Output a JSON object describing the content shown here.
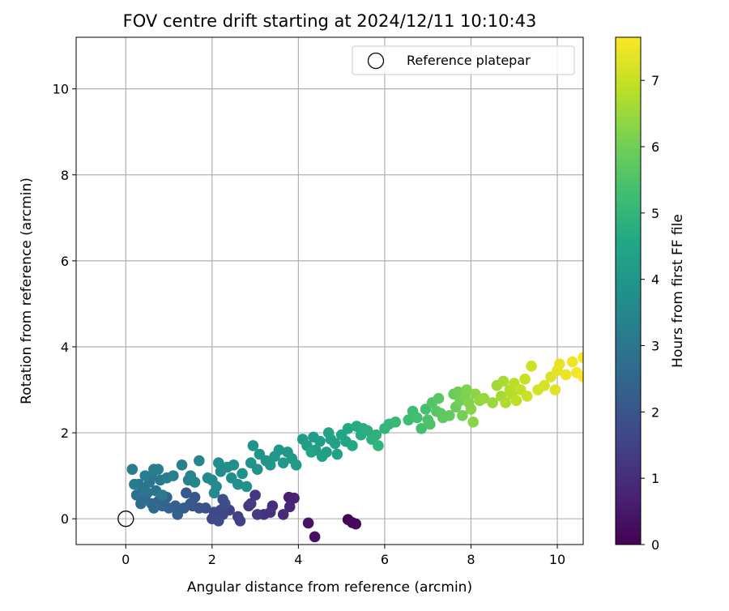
{
  "chart_data": {
    "type": "scatter",
    "title": "FOV centre drift starting at 2024/12/11 10:10:43",
    "xlabel": "Angular distance from reference (arcmin)",
    "ylabel": "Rotation from reference (arcmin)",
    "xlim": [
      -1.15,
      10.6
    ],
    "ylim": [
      -0.6,
      11.2
    ],
    "xticks": [
      0,
      2,
      4,
      6,
      8,
      10
    ],
    "yticks": [
      0,
      2,
      4,
      6,
      8,
      10
    ],
    "grid": true,
    "legend": {
      "placement": "top-right",
      "entries": [
        "Reference platepar"
      ]
    },
    "reference_point": {
      "name": "Reference platepar",
      "x": 0.0,
      "y": 0.0
    },
    "colorbar": {
      "label": "Hours from first FF file",
      "range": [
        0,
        7.65
      ],
      "ticks": [
        0,
        1,
        2,
        3,
        4,
        5,
        6,
        7
      ],
      "colormap": "viridis"
    },
    "series": [
      {
        "points": [
          {
            "x": 5.15,
            "y": -0.02,
            "c": 0.05
          },
          {
            "x": 5.25,
            "y": -0.09,
            "c": 0.1
          },
          {
            "x": 5.33,
            "y": -0.12,
            "c": 0.15
          },
          {
            "x": 4.38,
            "y": -0.42,
            "c": 0.3
          },
          {
            "x": 4.23,
            "y": -0.1,
            "c": 0.4
          },
          {
            "x": 3.78,
            "y": 0.5,
            "c": 0.7
          },
          {
            "x": 3.9,
            "y": 0.48,
            "c": 0.75
          },
          {
            "x": 3.8,
            "y": 0.28,
            "c": 0.8
          },
          {
            "x": 3.65,
            "y": 0.1,
            "c": 0.9
          },
          {
            "x": 3.4,
            "y": 0.3,
            "c": 1.0
          },
          {
            "x": 3.35,
            "y": 0.15,
            "c": 1.1
          },
          {
            "x": 3.2,
            "y": 0.1,
            "c": 1.15
          },
          {
            "x": 3.0,
            "y": 0.55,
            "c": 1.2
          },
          {
            "x": 2.85,
            "y": 0.3,
            "c": 1.25
          },
          {
            "x": 3.05,
            "y": 0.1,
            "c": 1.3
          },
          {
            "x": 2.9,
            "y": 0.35,
            "c": 1.35
          },
          {
            "x": 2.6,
            "y": 0.05,
            "c": 1.4
          },
          {
            "x": 2.65,
            "y": -0.05,
            "c": 1.45
          },
          {
            "x": 2.4,
            "y": 0.2,
            "c": 1.5
          },
          {
            "x": 2.25,
            "y": 0.1,
            "c": 1.55
          },
          {
            "x": 2.2,
            "y": 0.2,
            "c": 1.6
          },
          {
            "x": 2.05,
            "y": 0.15,
            "c": 1.65
          },
          {
            "x": 2.0,
            "y": 0.0,
            "c": 1.7
          },
          {
            "x": 2.15,
            "y": -0.05,
            "c": 1.75
          },
          {
            "x": 2.3,
            "y": 0.35,
            "c": 1.8
          },
          {
            "x": 2.25,
            "y": 0.45,
            "c": 1.85
          },
          {
            "x": 1.85,
            "y": 0.25,
            "c": 1.9
          },
          {
            "x": 1.7,
            "y": 0.25,
            "c": 1.95
          },
          {
            "x": 1.55,
            "y": 0.3,
            "c": 2.0
          },
          {
            "x": 1.6,
            "y": 0.5,
            "c": 2.05
          },
          {
            "x": 1.4,
            "y": 0.6,
            "c": 2.1
          },
          {
            "x": 1.5,
            "y": 0.35,
            "c": 2.15
          },
          {
            "x": 1.35,
            "y": 0.25,
            "c": 2.2
          },
          {
            "x": 1.15,
            "y": 0.3,
            "c": 2.25
          },
          {
            "x": 1.2,
            "y": 0.1,
            "c": 2.3
          },
          {
            "x": 1.0,
            "y": 0.25,
            "c": 2.35
          },
          {
            "x": 0.95,
            "y": 0.5,
            "c": 2.4
          },
          {
            "x": 0.85,
            "y": 0.3,
            "c": 2.45
          },
          {
            "x": 0.75,
            "y": 0.4,
            "c": 2.5
          },
          {
            "x": 0.6,
            "y": 0.35,
            "c": 2.55
          },
          {
            "x": 0.65,
            "y": 0.25,
            "c": 2.6
          },
          {
            "x": 0.45,
            "y": 0.45,
            "c": 2.65
          },
          {
            "x": 0.35,
            "y": 0.35,
            "c": 2.7
          },
          {
            "x": 0.25,
            "y": 0.55,
            "c": 2.75
          },
          {
            "x": 0.3,
            "y": 0.8,
            "c": 2.8
          },
          {
            "x": 0.5,
            "y": 0.6,
            "c": 2.85
          },
          {
            "x": 0.55,
            "y": 0.85,
            "c": 2.9
          },
          {
            "x": 0.7,
            "y": 0.65,
            "c": 2.95
          },
          {
            "x": 0.4,
            "y": 0.7,
            "c": 3.0
          },
          {
            "x": 0.6,
            "y": 1.0,
            "c": 3.05
          },
          {
            "x": 0.8,
            "y": 0.9,
            "c": 3.1
          },
          {
            "x": 0.85,
            "y": 0.55,
            "c": 3.12
          },
          {
            "x": 0.2,
            "y": 0.8,
            "c": 3.15
          },
          {
            "x": 0.15,
            "y": 1.15,
            "c": 3.18
          },
          {
            "x": 0.45,
            "y": 1.0,
            "c": 3.2
          },
          {
            "x": 0.65,
            "y": 1.15,
            "c": 3.22
          },
          {
            "x": 0.75,
            "y": 1.15,
            "c": 3.25
          },
          {
            "x": 0.95,
            "y": 0.95,
            "c": 3.28
          },
          {
            "x": 1.1,
            "y": 1.0,
            "c": 3.3
          },
          {
            "x": 1.3,
            "y": 1.25,
            "c": 3.35
          },
          {
            "x": 1.45,
            "y": 0.9,
            "c": 3.4
          },
          {
            "x": 1.5,
            "y": 1.0,
            "c": 3.42
          },
          {
            "x": 1.6,
            "y": 0.85,
            "c": 3.45
          },
          {
            "x": 1.7,
            "y": 1.35,
            "c": 3.5
          },
          {
            "x": 1.9,
            "y": 0.95,
            "c": 3.55
          },
          {
            "x": 2.0,
            "y": 0.9,
            "c": 3.58
          },
          {
            "x": 2.1,
            "y": 0.75,
            "c": 3.6
          },
          {
            "x": 2.05,
            "y": 0.6,
            "c": 3.62
          },
          {
            "x": 2.2,
            "y": 1.1,
            "c": 3.65
          },
          {
            "x": 2.15,
            "y": 1.3,
            "c": 3.68
          },
          {
            "x": 2.35,
            "y": 1.2,
            "c": 3.7
          },
          {
            "x": 2.45,
            "y": 0.95,
            "c": 3.72
          },
          {
            "x": 2.5,
            "y": 1.25,
            "c": 3.75
          },
          {
            "x": 2.6,
            "y": 0.8,
            "c": 3.78
          },
          {
            "x": 2.7,
            "y": 1.05,
            "c": 3.8
          },
          {
            "x": 2.8,
            "y": 0.75,
            "c": 3.82
          },
          {
            "x": 2.9,
            "y": 1.3,
            "c": 3.85
          },
          {
            "x": 2.95,
            "y": 1.7,
            "c": 3.88
          },
          {
            "x": 3.05,
            "y": 1.15,
            "c": 3.9
          },
          {
            "x": 3.1,
            "y": 1.5,
            "c": 3.93
          },
          {
            "x": 3.25,
            "y": 1.35,
            "c": 3.95
          },
          {
            "x": 3.35,
            "y": 1.25,
            "c": 3.98
          },
          {
            "x": 3.45,
            "y": 1.45,
            "c": 4.0
          },
          {
            "x": 3.55,
            "y": 1.6,
            "c": 4.03
          },
          {
            "x": 3.65,
            "y": 1.3,
            "c": 4.05
          },
          {
            "x": 3.75,
            "y": 1.55,
            "c": 4.08
          },
          {
            "x": 3.85,
            "y": 1.4,
            "c": 4.1
          },
          {
            "x": 3.95,
            "y": 1.25,
            "c": 4.12
          },
          {
            "x": 4.1,
            "y": 1.85,
            "c": 4.15
          },
          {
            "x": 4.2,
            "y": 1.7,
            "c": 4.18
          },
          {
            "x": 4.35,
            "y": 1.9,
            "c": 4.2
          },
          {
            "x": 4.4,
            "y": 1.6,
            "c": 4.22
          },
          {
            "x": 4.5,
            "y": 1.8,
            "c": 4.25
          },
          {
            "x": 4.55,
            "y": 1.45,
            "c": 4.28
          },
          {
            "x": 4.65,
            "y": 1.55,
            "c": 4.3
          },
          {
            "x": 4.75,
            "y": 1.85,
            "c": 4.33
          },
          {
            "x": 4.85,
            "y": 1.75,
            "c": 4.35
          },
          {
            "x": 4.9,
            "y": 1.5,
            "c": 4.38
          },
          {
            "x": 4.7,
            "y": 2.0,
            "c": 4.4
          },
          {
            "x": 4.3,
            "y": 1.55,
            "c": 4.42
          },
          {
            "x": 5.0,
            "y": 1.95,
            "c": 4.45
          },
          {
            "x": 5.1,
            "y": 1.8,
            "c": 4.5
          },
          {
            "x": 5.15,
            "y": 2.1,
            "c": 4.55
          },
          {
            "x": 5.25,
            "y": 1.7,
            "c": 4.6
          },
          {
            "x": 5.35,
            "y": 2.15,
            "c": 4.65
          },
          {
            "x": 5.45,
            "y": 1.95,
            "c": 4.7
          },
          {
            "x": 5.5,
            "y": 2.1,
            "c": 4.75
          },
          {
            "x": 5.6,
            "y": 2.05,
            "c": 4.8
          },
          {
            "x": 5.7,
            "y": 1.85,
            "c": 4.85
          },
          {
            "x": 5.8,
            "y": 1.95,
            "c": 4.9
          },
          {
            "x": 5.85,
            "y": 1.7,
            "c": 4.95
          },
          {
            "x": 6.0,
            "y": 2.1,
            "c": 5.0
          },
          {
            "x": 6.1,
            "y": 2.2,
            "c": 5.05
          },
          {
            "x": 6.25,
            "y": 2.25,
            "c": 5.1
          },
          {
            "x": 6.55,
            "y": 2.3,
            "c": 5.2
          },
          {
            "x": 6.65,
            "y": 2.5,
            "c": 5.25
          },
          {
            "x": 6.75,
            "y": 2.35,
            "c": 5.3
          },
          {
            "x": 6.85,
            "y": 2.1,
            "c": 5.35
          },
          {
            "x": 6.95,
            "y": 2.55,
            "c": 5.4
          },
          {
            "x": 7.0,
            "y": 2.3,
            "c": 5.45
          },
          {
            "x": 7.05,
            "y": 2.2,
            "c": 5.5
          },
          {
            "x": 7.1,
            "y": 2.7,
            "c": 5.55
          },
          {
            "x": 7.2,
            "y": 2.5,
            "c": 5.6
          },
          {
            "x": 7.25,
            "y": 2.8,
            "c": 5.65
          },
          {
            "x": 7.3,
            "y": 2.45,
            "c": 5.7
          },
          {
            "x": 7.35,
            "y": 2.35,
            "c": 5.75
          },
          {
            "x": 7.5,
            "y": 2.4,
            "c": 5.8
          },
          {
            "x": 7.6,
            "y": 2.9,
            "c": 5.85
          },
          {
            "x": 7.65,
            "y": 2.6,
            "c": 5.9
          },
          {
            "x": 7.7,
            "y": 2.95,
            "c": 5.95
          },
          {
            "x": 7.75,
            "y": 2.75,
            "c": 6.0
          },
          {
            "x": 7.8,
            "y": 2.4,
            "c": 6.05
          },
          {
            "x": 7.85,
            "y": 2.85,
            "c": 6.1
          },
          {
            "x": 7.9,
            "y": 3.0,
            "c": 6.15
          },
          {
            "x": 7.95,
            "y": 2.7,
            "c": 6.2
          },
          {
            "x": 8.0,
            "y": 2.55,
            "c": 6.25
          },
          {
            "x": 8.05,
            "y": 2.25,
            "c": 6.3
          },
          {
            "x": 8.1,
            "y": 2.9,
            "c": 6.35
          },
          {
            "x": 8.2,
            "y": 2.75,
            "c": 6.4
          },
          {
            "x": 8.3,
            "y": 2.8,
            "c": 6.45
          },
          {
            "x": 8.5,
            "y": 2.7,
            "c": 6.5
          },
          {
            "x": 8.6,
            "y": 3.1,
            "c": 6.55
          },
          {
            "x": 8.7,
            "y": 2.85,
            "c": 6.6
          },
          {
            "x": 8.75,
            "y": 3.2,
            "c": 6.65
          },
          {
            "x": 8.8,
            "y": 2.7,
            "c": 6.7
          },
          {
            "x": 8.9,
            "y": 3.0,
            "c": 6.75
          },
          {
            "x": 8.95,
            "y": 2.9,
            "c": 6.8
          },
          {
            "x": 9.0,
            "y": 3.15,
            "c": 6.85
          },
          {
            "x": 9.05,
            "y": 2.75,
            "c": 6.9
          },
          {
            "x": 9.15,
            "y": 3.0,
            "c": 6.95
          },
          {
            "x": 9.25,
            "y": 3.25,
            "c": 7.0
          },
          {
            "x": 9.3,
            "y": 2.85,
            "c": 7.05
          },
          {
            "x": 9.4,
            "y": 3.55,
            "c": 7.1
          },
          {
            "x": 9.55,
            "y": 3.0,
            "c": 7.15
          },
          {
            "x": 9.7,
            "y": 3.1,
            "c": 7.2
          },
          {
            "x": 9.85,
            "y": 3.3,
            "c": 7.25
          },
          {
            "x": 9.95,
            "y": 3.0,
            "c": 7.3
          },
          {
            "x": 10.0,
            "y": 3.45,
            "c": 7.35
          },
          {
            "x": 10.05,
            "y": 3.6,
            "c": 7.4
          },
          {
            "x": 10.2,
            "y": 3.35,
            "c": 7.45
          },
          {
            "x": 10.35,
            "y": 3.65,
            "c": 7.5
          },
          {
            "x": 10.45,
            "y": 3.4,
            "c": 7.55
          },
          {
            "x": 10.6,
            "y": 3.75,
            "c": 7.6
          },
          {
            "x": 10.6,
            "y": 3.3,
            "c": 7.65
          }
        ]
      }
    ]
  }
}
